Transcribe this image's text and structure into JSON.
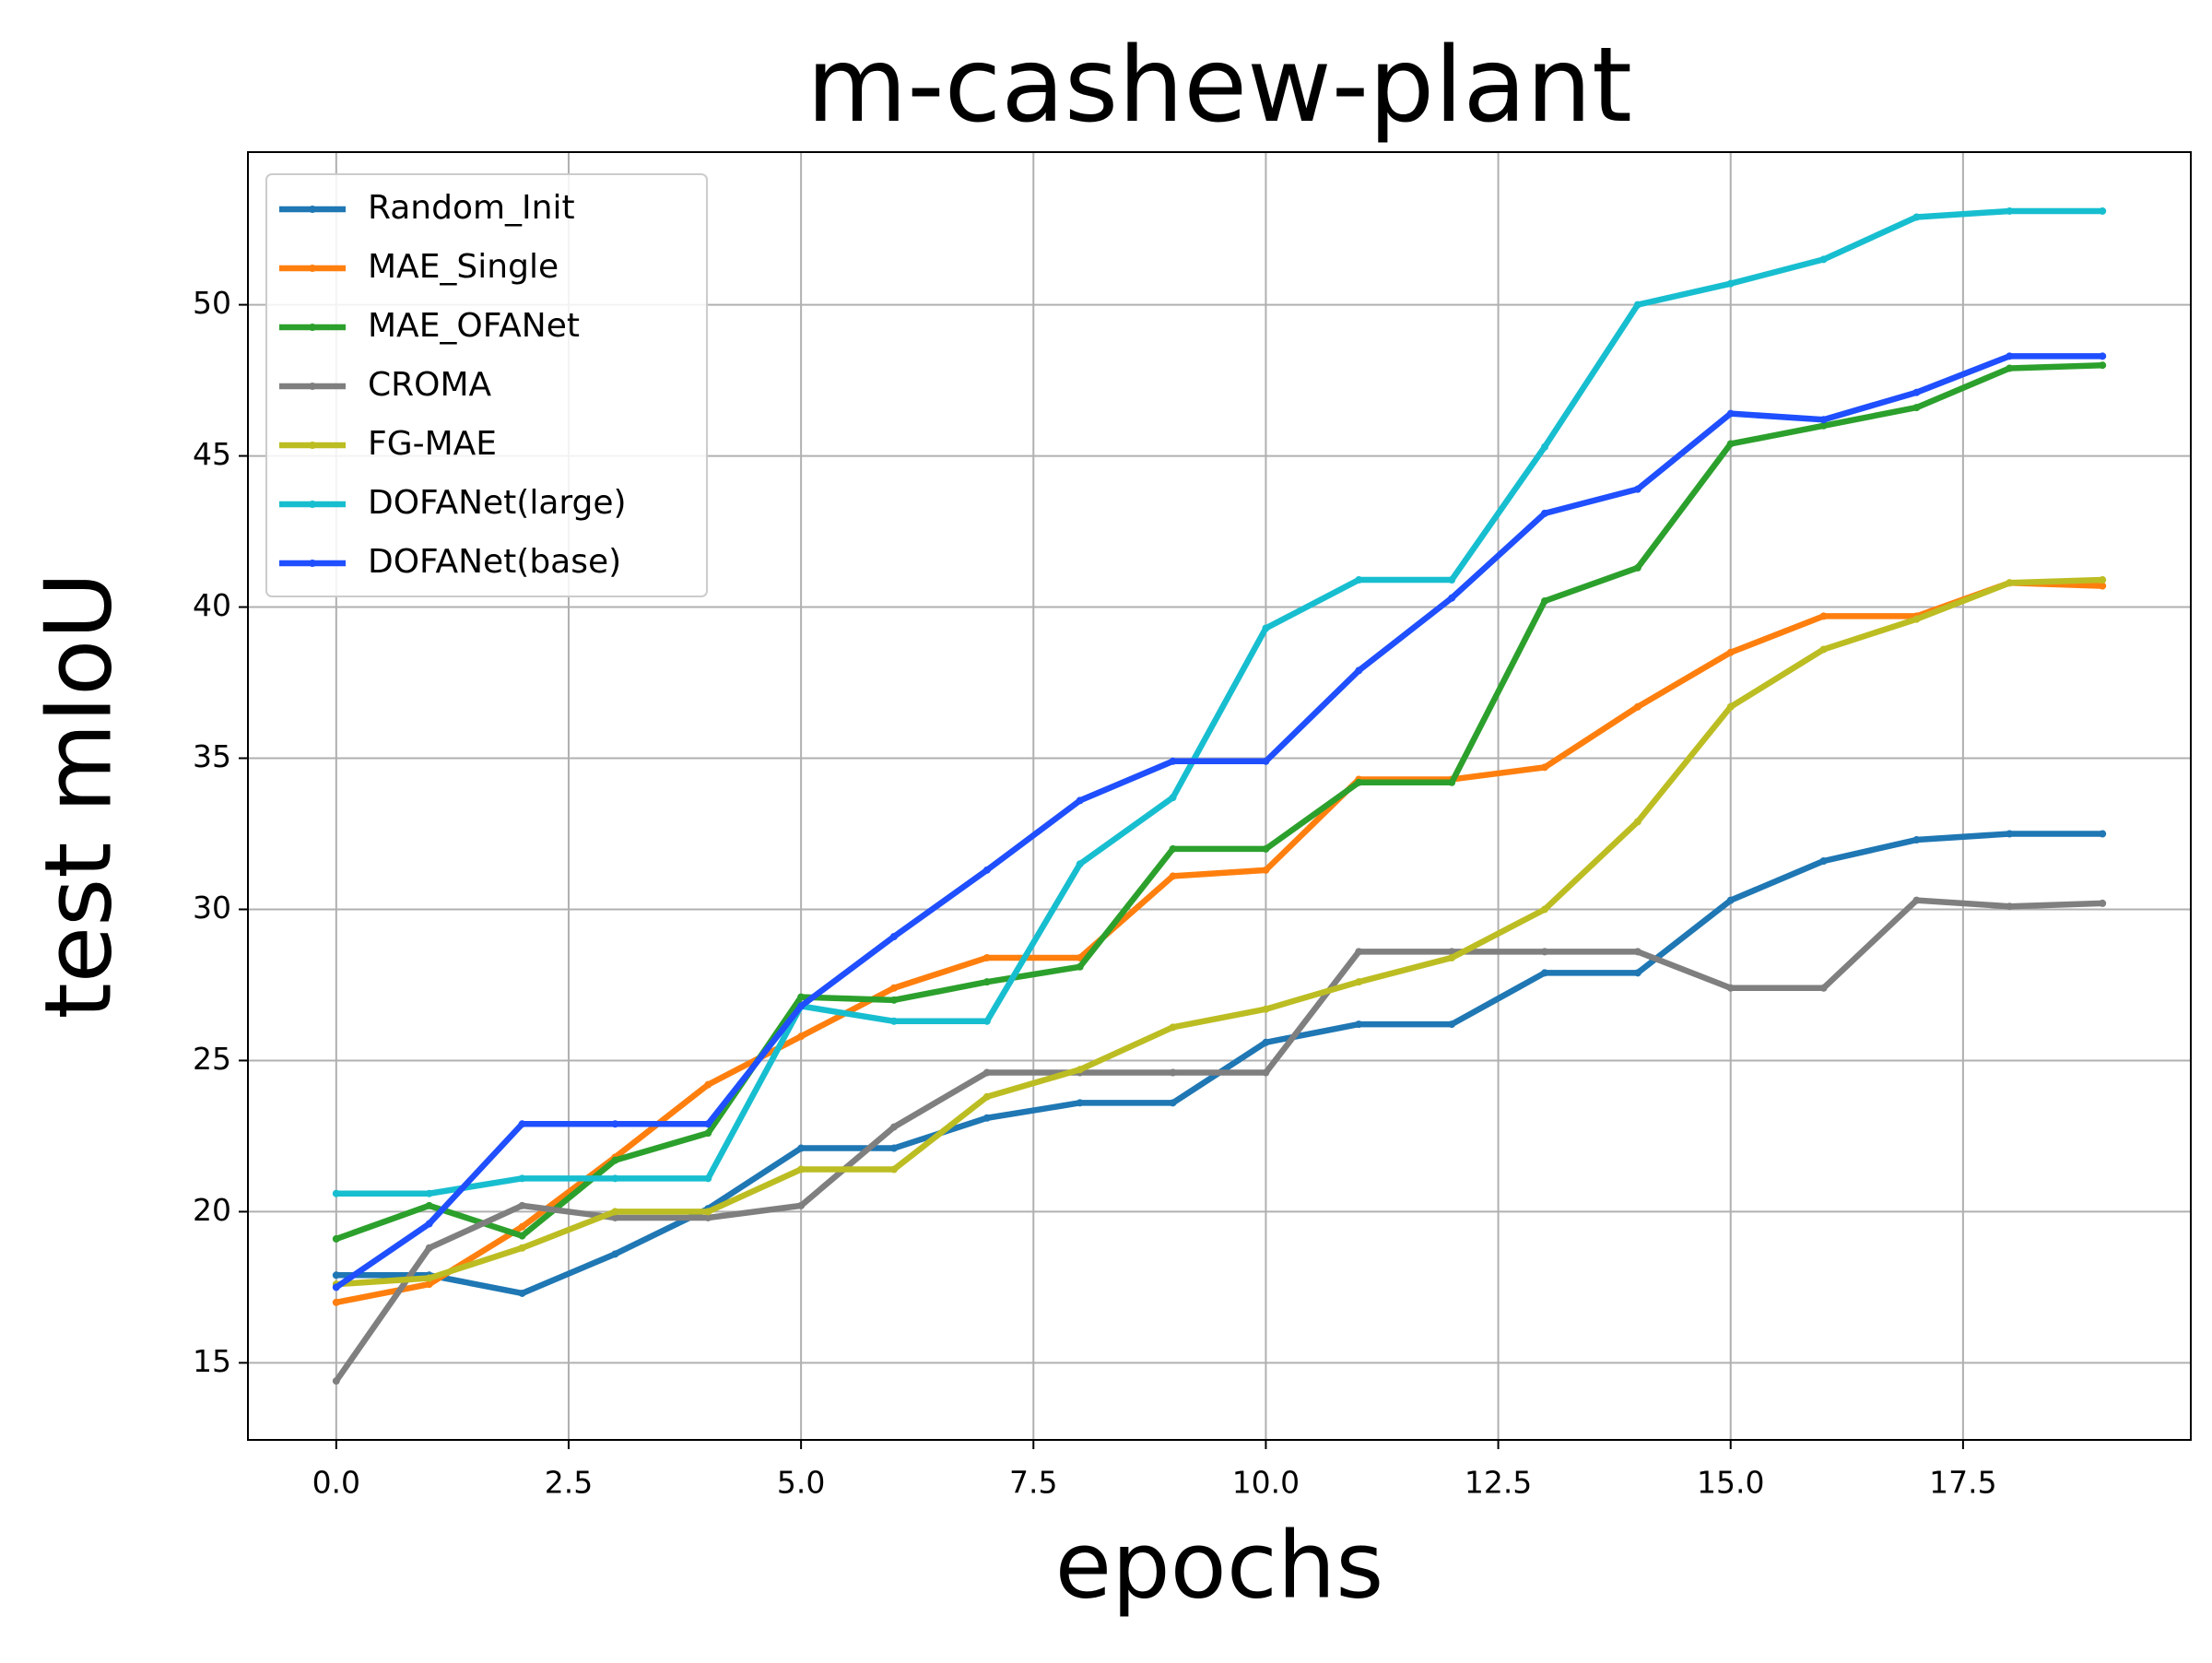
{
  "chart_data": {
    "type": "line",
    "title": "m-cashew-plant",
    "x_label": "epochs",
    "y_label": "test mIoU",
    "x": [
      0,
      1,
      2,
      3,
      4,
      5,
      6,
      7,
      8,
      9,
      10,
      11,
      12,
      13,
      14,
      15,
      16,
      17,
      18,
      19
    ],
    "series": [
      {
        "name": "Random_Init",
        "color": "#1f77b4",
        "values": [
          17.9,
          17.9,
          17.3,
          18.6,
          20.1,
          22.1,
          22.1,
          23.1,
          23.6,
          23.6,
          25.6,
          26.2,
          26.2,
          27.9,
          27.9,
          30.3,
          31.6,
          32.3,
          32.5,
          32.5
        ]
      },
      {
        "name": "MAE_Single",
        "color": "#ff7f0e",
        "values": [
          17.0,
          17.6,
          19.5,
          21.8,
          24.2,
          25.8,
          27.4,
          28.4,
          28.4,
          31.1,
          31.3,
          34.3,
          34.3,
          34.7,
          36.7,
          38.5,
          39.7,
          39.7,
          40.8,
          40.7
        ]
      },
      {
        "name": "MAE_OFANet",
        "color": "#2ca02c",
        "values": [
          19.1,
          20.2,
          19.2,
          21.7,
          22.6,
          27.1,
          27.0,
          27.6,
          28.1,
          32.0,
          32.0,
          34.2,
          34.2,
          40.2,
          41.3,
          45.4,
          46.0,
          46.6,
          47.9,
          48.0
        ]
      },
      {
        "name": "CROMA",
        "color": "#7f7f7f",
        "values": [
          14.4,
          18.8,
          20.2,
          19.8,
          19.8,
          20.2,
          22.8,
          24.6,
          24.6,
          24.6,
          24.6,
          28.6,
          28.6,
          28.6,
          28.6,
          27.4,
          27.4,
          30.3,
          30.1,
          30.2
        ]
      },
      {
        "name": "FG-MAE",
        "color": "#bcbd22",
        "values": [
          17.6,
          17.8,
          18.8,
          20.0,
          20.0,
          21.4,
          21.4,
          23.8,
          24.7,
          26.1,
          26.7,
          27.6,
          28.4,
          30.0,
          32.9,
          36.7,
          38.6,
          39.6,
          40.8,
          40.9
        ]
      },
      {
        "name": "DOFANet(large)",
        "color": "#17becf",
        "values": [
          20.6,
          20.6,
          21.1,
          21.1,
          21.1,
          26.8,
          26.3,
          26.3,
          31.5,
          33.7,
          39.3,
          40.9,
          40.9,
          45.3,
          50.0,
          50.7,
          51.5,
          52.9,
          53.1,
          53.1
        ]
      },
      {
        "name": "DOFANet(base)",
        "color": "#1f4fff",
        "values": [
          17.5,
          19.6,
          22.9,
          22.9,
          22.9,
          26.8,
          29.1,
          31.3,
          33.6,
          34.9,
          34.9,
          37.9,
          40.3,
          43.1,
          43.9,
          46.4,
          46.2,
          47.1,
          48.3,
          48.3
        ]
      }
    ],
    "xlim": [
      -0.95,
      19.95
    ],
    "xticks": [
      {
        "value": 0,
        "label": "0.0"
      },
      {
        "value": 2.5,
        "label": "2.5"
      },
      {
        "value": 5,
        "label": "5.0"
      },
      {
        "value": 7.5,
        "label": "7.5"
      },
      {
        "value": 10,
        "label": "10.0"
      },
      {
        "value": 12.5,
        "label": "12.5"
      },
      {
        "value": 15,
        "label": "15.0"
      },
      {
        "value": 17.5,
        "label": "17.5"
      }
    ],
    "ylim": [
      12.45,
      55.05
    ],
    "yticks": [
      15,
      20,
      25,
      30,
      35,
      40,
      45,
      50
    ],
    "grid": true,
    "legend": "upper left"
  }
}
